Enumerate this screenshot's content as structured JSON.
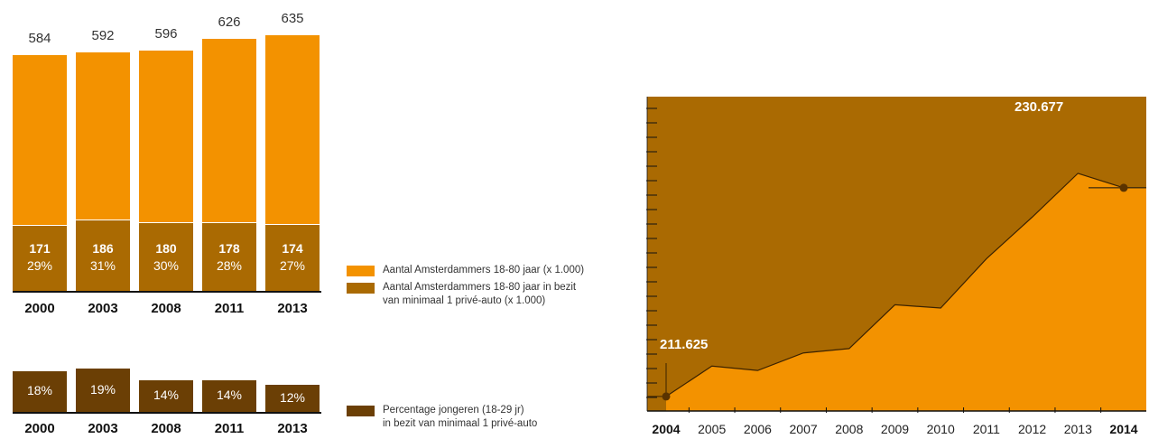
{
  "chart_data": [
    {
      "type": "bar",
      "categories": [
        "2000",
        "2003",
        "2008",
        "2011",
        "2013"
      ],
      "series": [
        {
          "name": "Aantal Amsterdammers 18-80 jaar (x 1.000)",
          "values": [
            584,
            592,
            596,
            626,
            635
          ]
        },
        {
          "name": "Aantal Amsterdammers 18-80 jaar in bezit van minimaal 1 privé-auto (x 1.000)",
          "values": [
            171,
            186,
            180,
            178,
            174
          ]
        }
      ],
      "total_labels": [
        "584",
        "592",
        "596",
        "626",
        "635"
      ],
      "owner_labels": [
        "171",
        "186",
        "180",
        "178",
        "174"
      ],
      "owner_pct_labels": [
        "29%",
        "31%",
        "30%",
        "28%",
        "27%"
      ],
      "colors": {
        "total": "#F39200",
        "owners": "#AA6A02"
      }
    },
    {
      "type": "bar",
      "categories": [
        "2000",
        "2003",
        "2008",
        "2011",
        "2013"
      ],
      "series": [
        {
          "name": "Percentage jongeren (18-29 jr) in bezit van minimaal 1 privé-auto",
          "values": [
            18,
            19,
            14,
            14,
            12
          ]
        }
      ],
      "pct_labels": [
        "18%",
        "19%",
        "14%",
        "14%",
        "12%"
      ],
      "colors": {
        "bar": "#6B3F05"
      }
    },
    {
      "type": "area",
      "x": [
        "2004",
        "2005",
        "2006",
        "2007",
        "2008",
        "2009",
        "2010",
        "2011",
        "2012",
        "2013",
        "2014"
      ],
      "bold_x": [
        "2004",
        "2014"
      ],
      "values": [
        211625,
        214400,
        214000,
        215600,
        216000,
        220000,
        219700,
        224200,
        228000,
        232000,
        230677
      ],
      "ylim": [
        210300,
        239000
      ],
      "annotations": [
        {
          "year": "2004",
          "label": "211.625"
        },
        {
          "year": "2014",
          "label": "230.677"
        }
      ],
      "colors": {
        "background": "#AA6A02",
        "area": "#F39200",
        "line": "#3B2200"
      }
    }
  ],
  "legend": [
    {
      "text_lines": [
        "Aantal Amsterdammers 18-80 jaar (x 1.000)"
      ],
      "color": "#F39200"
    },
    {
      "text_lines": [
        "Aantal Amsterdammers 18-80 jaar in bezit",
        "van minimaal 1 privé-auto (x 1.000)"
      ],
      "color": "#AA6A02"
    },
    {
      "text_lines": [
        "Percentage jongeren (18-29 jr)",
        "in bezit van minimaal 1 privé-auto"
      ],
      "color": "#6B3F05"
    }
  ]
}
